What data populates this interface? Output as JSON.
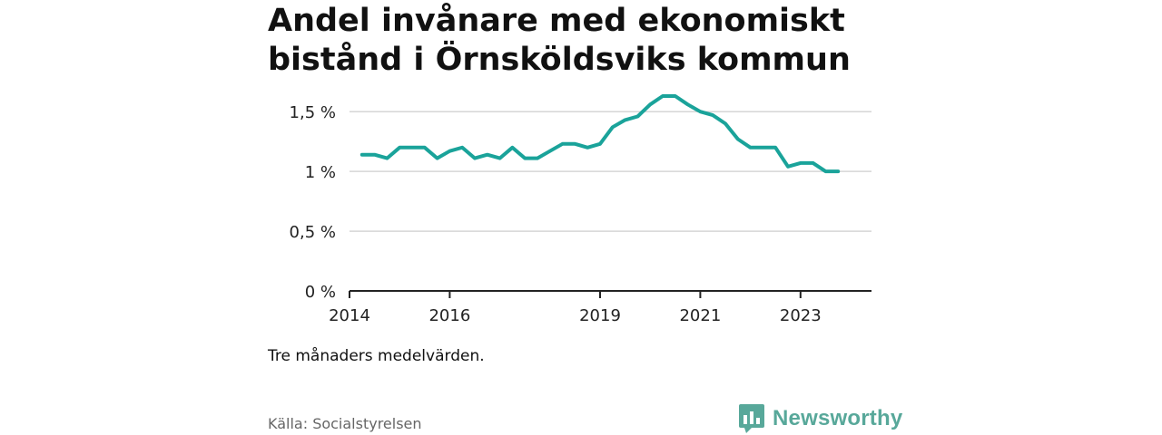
{
  "title_lines": [
    "Andel invånare med ekonomiskt",
    "bistånd i Örnsköldsviks kommun"
  ],
  "note": "Tre månaders medelvärden.",
  "source": "Källa: Socialstyrelsen",
  "brand": {
    "name": "Newsworthy",
    "color": "#58a89a"
  },
  "chart_data": {
    "type": "line",
    "title": "Andel invånare med ekonomiskt bistånd i Örnsköldsviks kommun",
    "xlabel": "",
    "ylabel": "",
    "color": "#1aa39a",
    "grid": true,
    "xlim": [
      "2014-01",
      "2024-06"
    ],
    "ylim": [
      0,
      1.6
    ],
    "yticks": [
      0,
      0.5,
      1,
      1.5
    ],
    "ytick_labels": [
      "0 %",
      "0,5 %",
      "1 %",
      "1,5 %"
    ],
    "xticks": [
      "2014-01",
      "2016-01",
      "2019-01",
      "2021-01",
      "2023-01"
    ],
    "xtick_labels": [
      "2014",
      "2016",
      "2019",
      "2021",
      "2023"
    ],
    "series": [
      {
        "x": [
          "2014-04",
          "2014-07",
          "2014-10",
          "2015-01",
          "2015-04",
          "2015-07",
          "2015-10",
          "2016-01",
          "2016-04",
          "2016-07",
          "2016-10",
          "2017-01",
          "2017-04",
          "2017-07",
          "2017-10",
          "2018-01",
          "2018-04",
          "2018-07",
          "2018-10",
          "2019-01",
          "2019-04",
          "2019-07",
          "2019-10",
          "2020-01",
          "2020-04",
          "2020-07",
          "2020-10",
          "2021-01",
          "2021-04",
          "2021-07",
          "2021-10",
          "2022-01",
          "2022-04",
          "2022-07",
          "2022-10",
          "2023-01",
          "2023-04",
          "2023-07",
          "2023-10"
        ],
        "values": [
          1.14,
          1.14,
          1.11,
          1.2,
          1.2,
          1.2,
          1.11,
          1.17,
          1.2,
          1.11,
          1.14,
          1.11,
          1.2,
          1.11,
          1.11,
          1.17,
          1.23,
          1.23,
          1.2,
          1.23,
          1.37,
          1.43,
          1.46,
          1.56,
          1.63,
          1.63,
          1.56,
          1.5,
          1.47,
          1.4,
          1.27,
          1.2,
          1.2,
          1.2,
          1.04,
          1.07,
          1.07,
          1.0,
          1.0
        ]
      }
    ]
  }
}
